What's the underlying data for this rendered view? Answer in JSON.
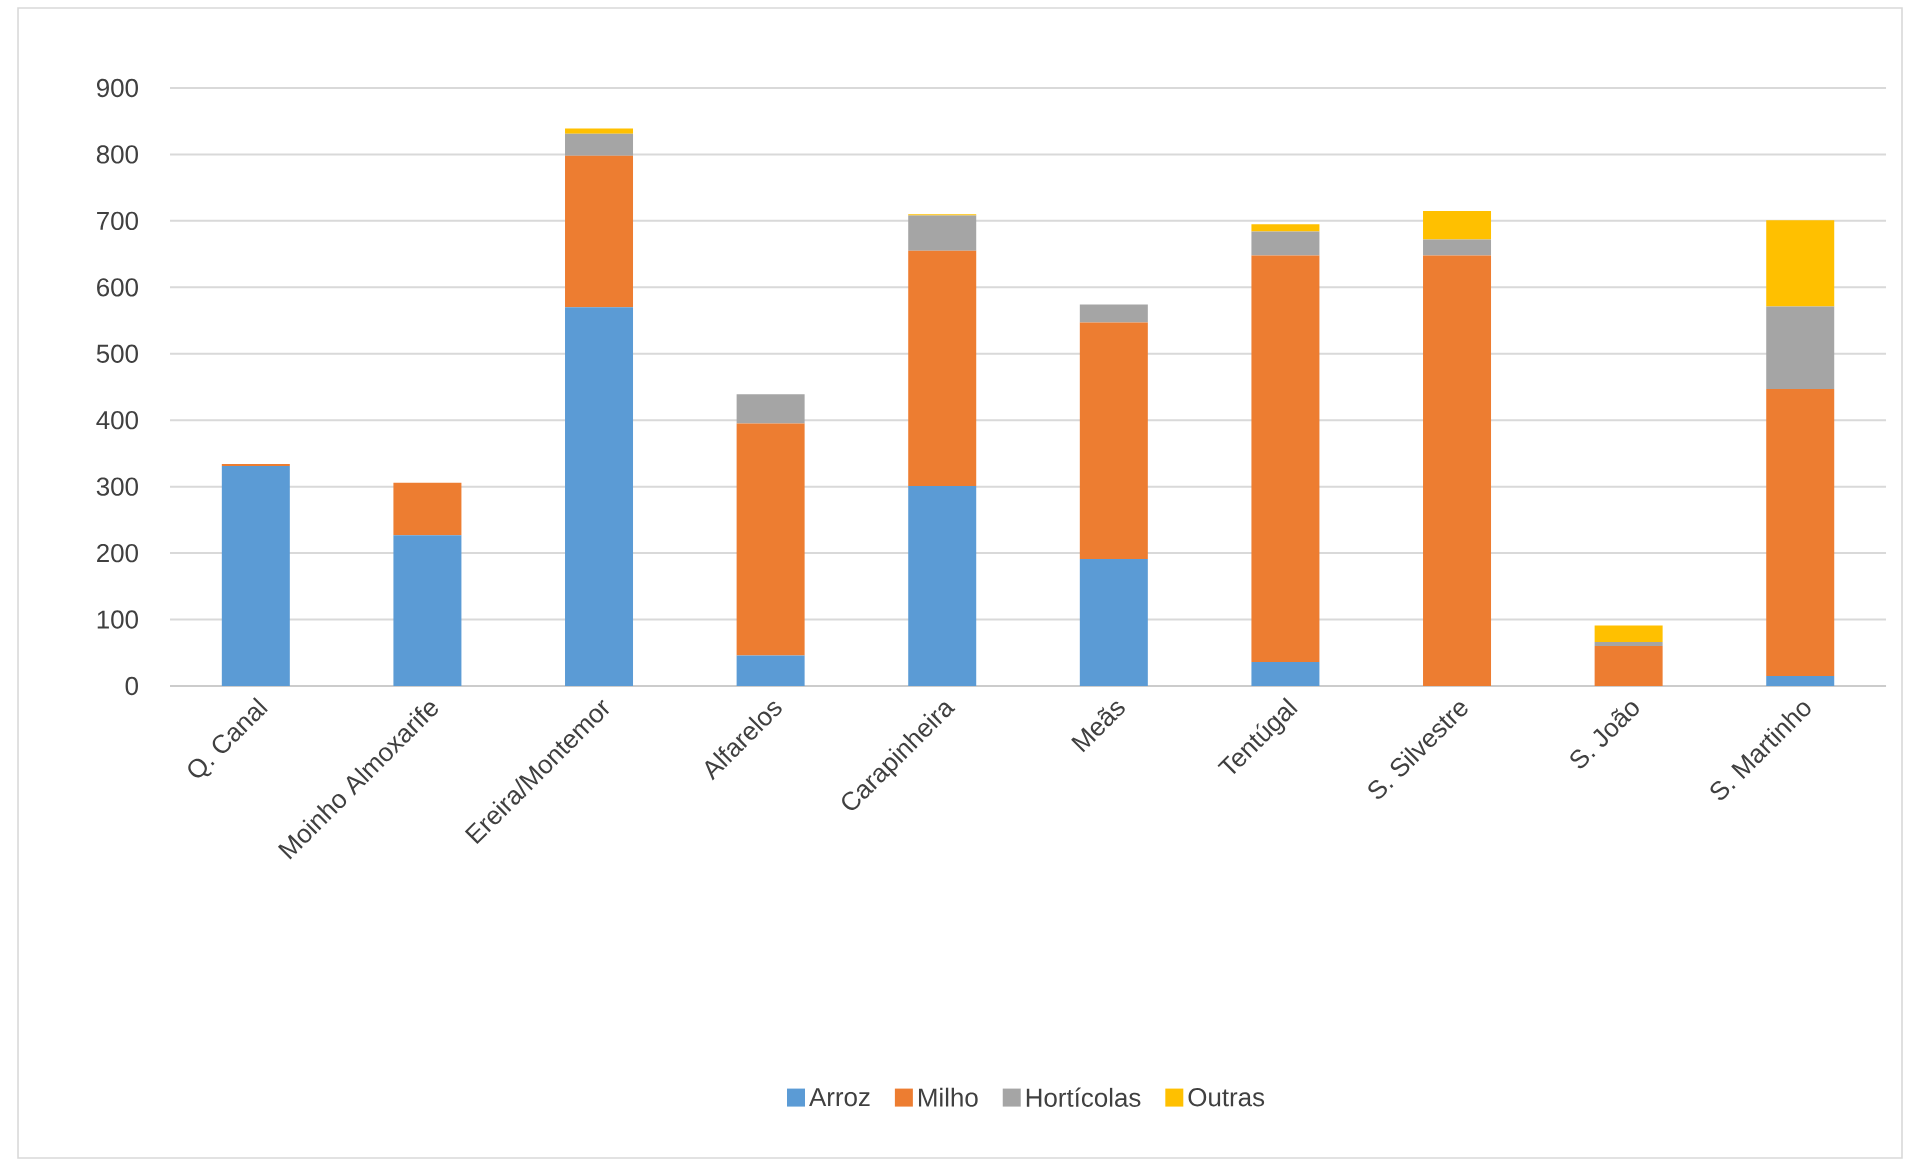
{
  "chart_data": {
    "type": "bar",
    "stacked": true,
    "categories": [
      "Q. Canal",
      "Moinho Almoxarife",
      "Ereira/Montemor",
      "Alfarelos",
      "Carapinheira",
      "Meãs",
      "Tentúgal",
      "S. Silvestre",
      "S. João",
      "S. Martinho"
    ],
    "series": [
      {
        "name": "Arroz",
        "color": "#5b9bd5",
        "values": [
          331,
          227,
          570,
          46,
          301,
          191,
          36,
          0,
          0,
          15
        ]
      },
      {
        "name": "Milho",
        "color": "#ed7d31",
        "values": [
          3,
          79,
          228,
          349,
          354,
          356,
          612,
          648,
          60,
          432
        ]
      },
      {
        "name": "Hortícolas",
        "color": "#a5a5a5",
        "values": [
          0,
          0,
          33,
          44,
          53,
          27,
          36,
          24,
          6,
          124
        ]
      },
      {
        "name": "Outras",
        "color": "#ffc000",
        "values": [
          0,
          0,
          8,
          0,
          2,
          0,
          11,
          43,
          25,
          130
        ]
      }
    ],
    "ylim": [
      0,
      900
    ],
    "yticks": [
      0,
      100,
      200,
      300,
      400,
      500,
      600,
      700,
      800,
      900
    ],
    "grid": "y",
    "legend": "bottom"
  }
}
